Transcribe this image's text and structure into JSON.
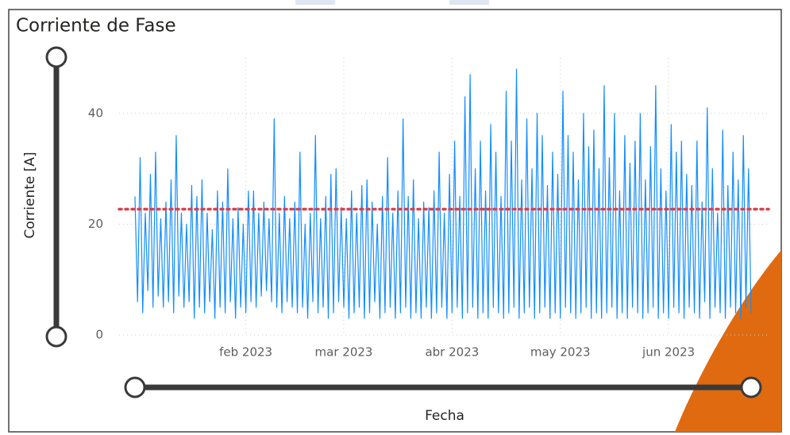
{
  "chart_data": {
    "type": "line",
    "title": "Corriente de Fase",
    "x_label": "Fecha",
    "y_label": "Corriente [A]",
    "color": "#118dff",
    "values": [
      25,
      6,
      32,
      4,
      22,
      8,
      29,
      5,
      33,
      7,
      21,
      5,
      24,
      6,
      28,
      4,
      36,
      7,
      22,
      5,
      20,
      6,
      27,
      3,
      25,
      5,
      28,
      4,
      22,
      6,
      19,
      3,
      26,
      5,
      24,
      4,
      30,
      6,
      21,
      3,
      23,
      5,
      20,
      4,
      26,
      6,
      26,
      5,
      22,
      7,
      24,
      8,
      21,
      6,
      39,
      5,
      22,
      4,
      25,
      6,
      21,
      5,
      24,
      4,
      33,
      5,
      20,
      3,
      22,
      6,
      36,
      4,
      21,
      5,
      25,
      3,
      29,
      4,
      30,
      6,
      23,
      5,
      21,
      3,
      26,
      4,
      22,
      5,
      27,
      3,
      28,
      4,
      24,
      6,
      20,
      3,
      25,
      4,
      32,
      5,
      22,
      3,
      26,
      4,
      39,
      5,
      25,
      3,
      28,
      4,
      21,
      3,
      24,
      5,
      23,
      3,
      26,
      4,
      33,
      5,
      22,
      3,
      29,
      4,
      35,
      5,
      25,
      3,
      43,
      4,
      47,
      5,
      30,
      3,
      35,
      4,
      26,
      3,
      38,
      5,
      33,
      4,
      25,
      3,
      44,
      4,
      35,
      5,
      48,
      3,
      28,
      4,
      39,
      5,
      30,
      3,
      40,
      4,
      36,
      5,
      27,
      3,
      33,
      4,
      29,
      3,
      44,
      5,
      36,
      4,
      33,
      3,
      28,
      4,
      40,
      5,
      34,
      3,
      37,
      4,
      30,
      3,
      45,
      4,
      32,
      5,
      40,
      3,
      26,
      4,
      36,
      3,
      31,
      5,
      35,
      4,
      40,
      3,
      28,
      4,
      34,
      5,
      45,
      3,
      30,
      4,
      26,
      3,
      38,
      5,
      33,
      4,
      35,
      3,
      29,
      5,
      27,
      4,
      35,
      3,
      24,
      6,
      41,
      3,
      30,
      5,
      22,
      4,
      37,
      3,
      27,
      5,
      33,
      4,
      28,
      3,
      36,
      5,
      30,
      4
    ],
    "xlim": [
      0,
      239
    ],
    "xticks": [
      {
        "value": 43,
        "label": "feb 2023"
      },
      {
        "value": 81,
        "label": "mar 2023"
      },
      {
        "value": 123,
        "label": "abr 2023"
      },
      {
        "value": 165,
        "label": "may 2023"
      },
      {
        "value": 207,
        "label": "jun 2023"
      }
    ],
    "ylim": [
      0,
      50
    ],
    "yticks": [
      0,
      20,
      40
    ],
    "grid": true,
    "reference_line": {
      "value": 22.7,
      "color": "#d64550"
    }
  }
}
